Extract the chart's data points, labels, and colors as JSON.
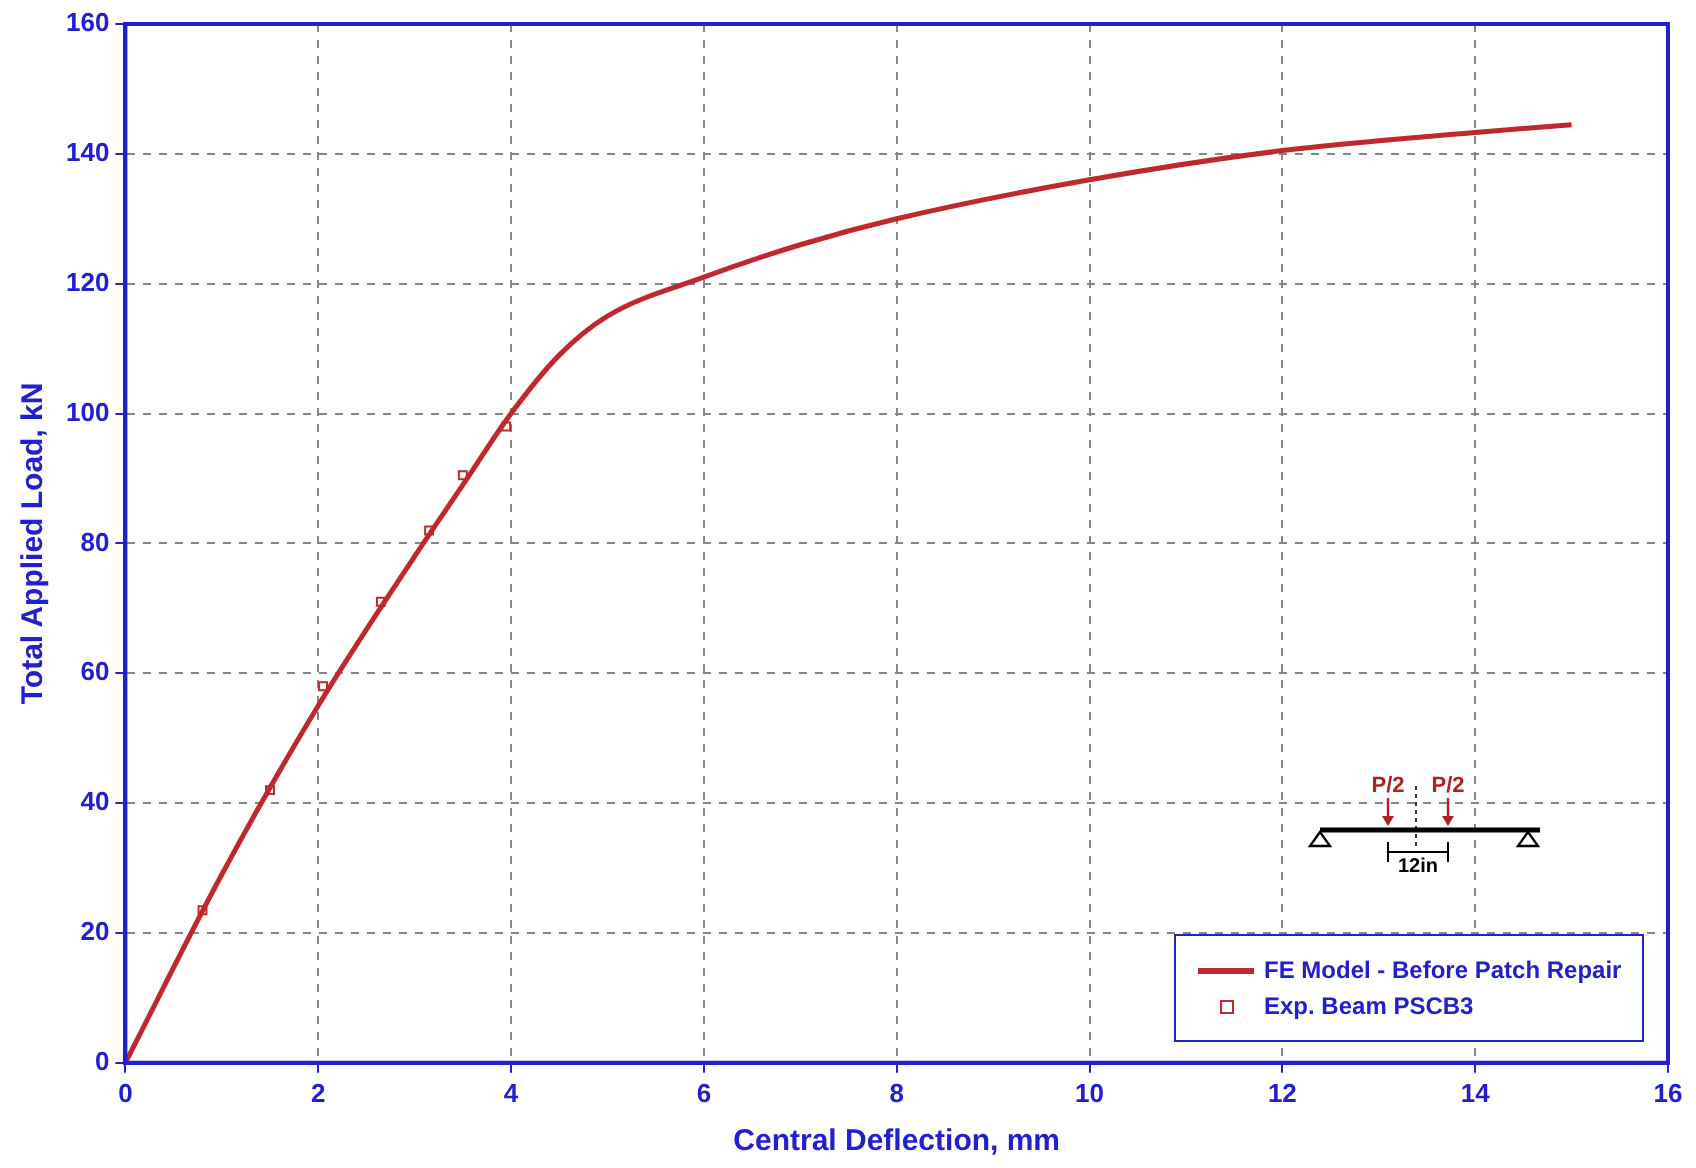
{
  "chart_data": {
    "type": "line",
    "xlabel": "Central Deflection, mm",
    "ylabel": "Total Applied Load, kN",
    "xlim": [
      0,
      16
    ],
    "xticks": [
      0,
      2,
      4,
      6,
      8,
      10,
      12,
      14,
      16
    ],
    "ylim": [
      0,
      160
    ],
    "yticks": [
      0,
      20,
      40,
      60,
      80,
      100,
      120,
      140,
      160
    ],
    "grid": true,
    "legend": "bottom right",
    "line_style": "solid",
    "annotations": [
      "P/2",
      "P/2",
      "12in"
    ],
    "series": [
      {
        "name": "FE Model - Before Patch Repair",
        "marker": "none",
        "color": "#c0282d",
        "x": [
          0,
          1,
          2,
          3,
          3.5,
          4,
          4.5,
          5,
          6,
          7,
          8,
          10,
          12,
          14,
          15
        ],
        "values": [
          0,
          29,
          55,
          78,
          89,
          100,
          109,
          115,
          121,
          126,
          130,
          136,
          140.5,
          143.3,
          144.5
        ]
      },
      {
        "name": "Exp. Beam PSCB3",
        "type": "scatter",
        "marker": "square",
        "color": "#c0282d",
        "x": [
          0.8,
          1.5,
          2.05,
          2.65,
          3.15,
          3.5,
          3.95
        ],
        "values": [
          23.5,
          42,
          58,
          71,
          82,
          90.5,
          98
        ]
      }
    ]
  }
}
